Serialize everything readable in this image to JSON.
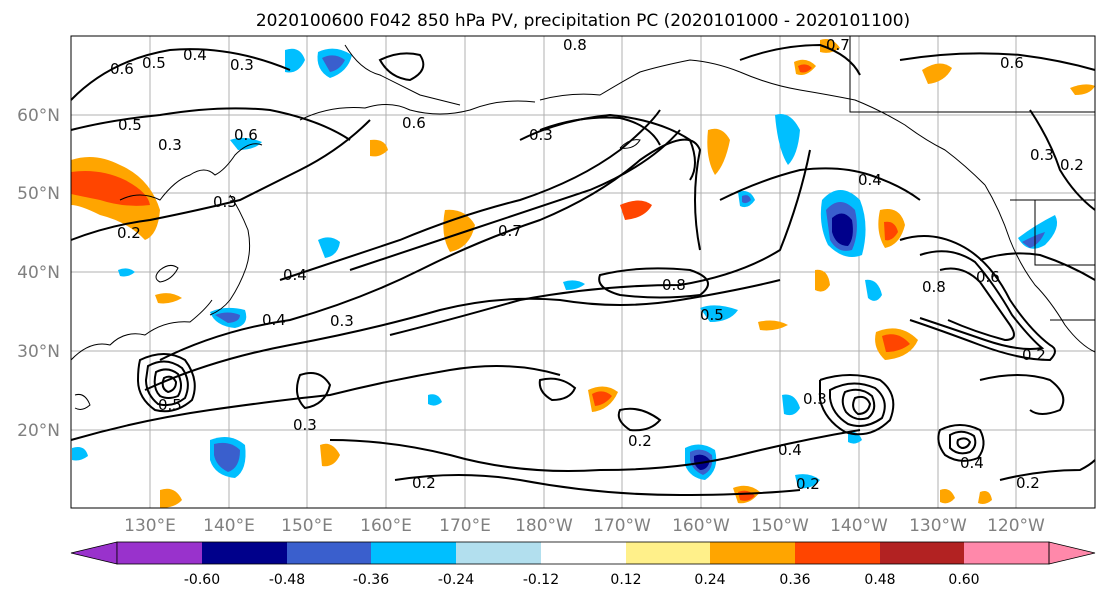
{
  "title": "2020100600 F042 850 hPa PV, precipitation PC (2020101000 - 2020101100)",
  "lat_labels": [
    "60°N",
    "50°N",
    "40°N",
    "30°N",
    "20°N"
  ],
  "lon_labels": [
    "130°E",
    "140°E",
    "150°E",
    "160°E",
    "170°E",
    "180°W",
    "170°W",
    "160°W",
    "150°W",
    "140°W",
    "130°W",
    "120°W"
  ],
  "colorbar": {
    "colors": [
      "#9932cc",
      "#00008b",
      "#3a5fcd",
      "#00bfff",
      "#b2dfee",
      "#ffffff",
      "#fff08a",
      "#ffa500",
      "#ff4500",
      "#b22222",
      "#ff88aa"
    ],
    "tick_labels": [
      "-0.60",
      "-0.48",
      "-0.36",
      "-0.24",
      "-0.12",
      "0.12",
      "0.24",
      "0.36",
      "0.48",
      "0.60"
    ]
  },
  "contour_labels": [
    "0.6",
    "0.5",
    "0.4",
    "0.3",
    "0.8",
    "0.7",
    "0.6",
    "0.5",
    "0.3",
    "0.6",
    "0.6",
    "0.3",
    "0.3",
    "0.2",
    "0.4",
    "0.4",
    "0.3",
    "0.7",
    "0.8",
    "0.5",
    "0.4",
    "0.8",
    "0.6",
    "0.3",
    "0.2",
    "0.3",
    "0.2",
    "0.2",
    "0.3",
    "0.4",
    "0.2",
    "0.2",
    "0.4",
    "0.2",
    "0.5"
  ]
}
